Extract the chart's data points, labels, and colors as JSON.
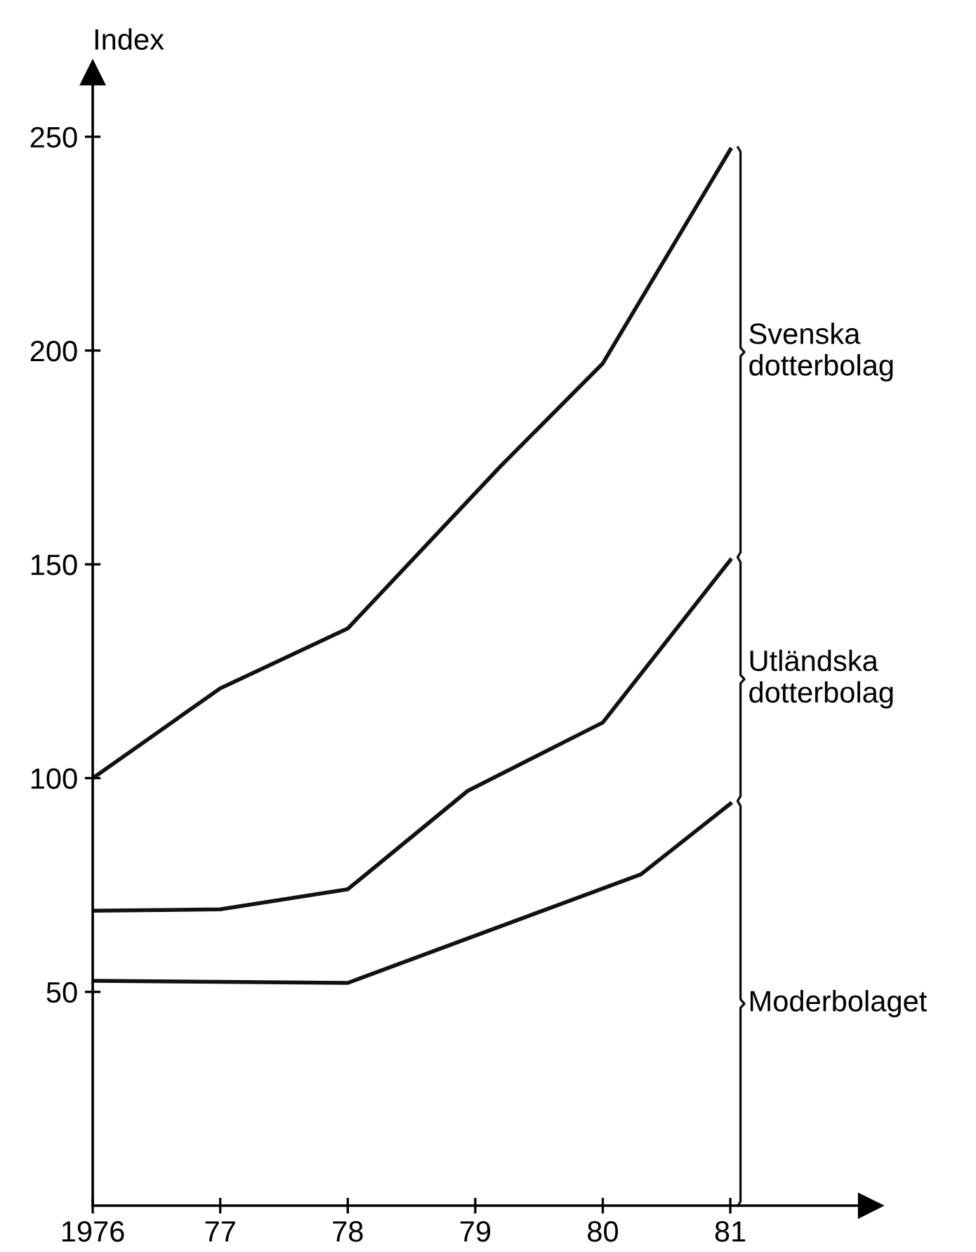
{
  "chart_data": {
    "type": "line",
    "ylabel": "Index",
    "xlim": [
      1976,
      1982.1
    ],
    "xticks": [
      {
        "value": 1976,
        "label": "1976"
      },
      {
        "value": 1977,
        "label": "77"
      },
      {
        "value": 1978,
        "label": "78"
      },
      {
        "value": 1979,
        "label": "79"
      },
      {
        "value": 1980,
        "label": "80"
      },
      {
        "value": 1981,
        "label": "81"
      }
    ],
    "ylim": [
      0,
      265
    ],
    "yticks": [
      50,
      100,
      150,
      200,
      250
    ],
    "grid": false,
    "legend": false,
    "marker": "none",
    "line_style": "solid",
    "series": [
      {
        "name": "Svenska\ndotterbolag",
        "color": "#111111",
        "x": [
          1976,
          1977,
          1978,
          1979.2,
          1980,
          1981
        ],
        "values": [
          100,
          121,
          135,
          173,
          197,
          247
        ]
      },
      {
        "name": "Utländska\ndotterbolag",
        "color": "#111111",
        "x": [
          1976,
          1977,
          1978,
          1978.94,
          1980,
          1981
        ],
        "values": [
          69,
          69.3,
          74,
          97,
          113,
          151
        ]
      },
      {
        "name": "Moderbolaget",
        "color": "#111111",
        "x": [
          1976,
          1978,
          1980.3,
          1981
        ],
        "values": [
          52.6,
          52.1,
          77.5,
          94
        ]
      }
    ]
  }
}
